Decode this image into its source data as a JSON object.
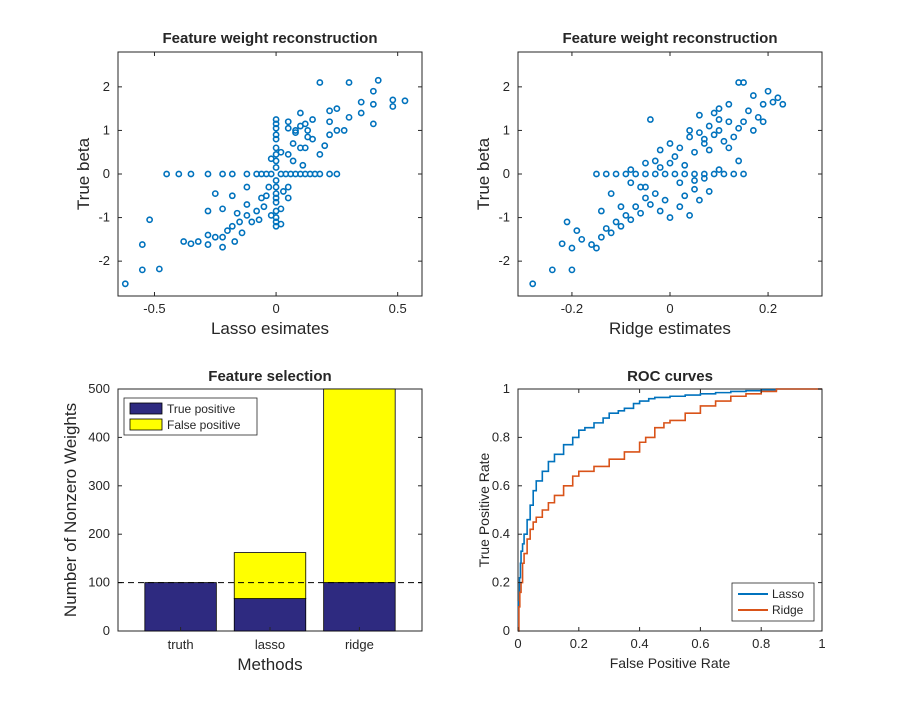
{
  "colors": {
    "scatter": "#0072BD",
    "true_positive": "#2E2A80",
    "false_positive": "#FFFF00",
    "lasso_line": "#0072BD",
    "ridge_line": "#D95319",
    "axis": "#262626"
  },
  "chart_data": [
    {
      "type": "scatter",
      "title": "Feature weight reconstruction",
      "xlabel": "Lasso esimates",
      "ylabel": "True beta",
      "xlim": [
        -0.65,
        0.6
      ],
      "ylim": [
        -2.8,
        2.8
      ],
      "xticks": [
        -0.5,
        0,
        0.5
      ],
      "xtick_labels": [
        "-0.5",
        "0",
        "0.5"
      ],
      "yticks": [
        -2,
        -1,
        0,
        1,
        2
      ],
      "ytick_labels": [
        "-2",
        "-1",
        "0",
        "1",
        "2"
      ],
      "marker": "circle-open",
      "points": [
        [
          -0.62,
          -2.52
        ],
        [
          -0.55,
          -2.2
        ],
        [
          -0.48,
          -2.18
        ],
        [
          -0.55,
          -1.62
        ],
        [
          -0.52,
          -1.05
        ],
        [
          -0.38,
          -1.55
        ],
        [
          -0.35,
          -1.6
        ],
        [
          -0.32,
          -1.55
        ],
        [
          -0.28,
          -1.62
        ],
        [
          -0.28,
          -1.4
        ],
        [
          -0.25,
          -1.45
        ],
        [
          -0.22,
          -1.68
        ],
        [
          -0.22,
          -1.45
        ],
        [
          -0.2,
          -1.3
        ],
        [
          -0.17,
          -1.55
        ],
        [
          -0.18,
          -1.2
        ],
        [
          -0.15,
          -1.1
        ],
        [
          -0.14,
          -1.35
        ],
        [
          -0.12,
          -0.95
        ],
        [
          -0.1,
          -1.1
        ],
        [
          -0.12,
          -0.7
        ],
        [
          -0.08,
          -0.85
        ],
        [
          -0.07,
          -1.05
        ],
        [
          -0.06,
          -0.55
        ],
        [
          -0.05,
          -0.75
        ],
        [
          -0.04,
          -0.5
        ],
        [
          -0.28,
          -0.85
        ],
        [
          -0.25,
          -0.45
        ],
        [
          -0.22,
          -0.8
        ],
        [
          -0.18,
          -0.5
        ],
        [
          -0.16,
          -0.9
        ],
        [
          -0.12,
          -0.3
        ],
        [
          -0.03,
          -0.3
        ],
        [
          -0.02,
          -0.95
        ],
        [
          0.0,
          -1.2
        ],
        [
          0.0,
          -1.1
        ],
        [
          0.02,
          -1.15
        ],
        [
          0.0,
          -0.65
        ],
        [
          0.02,
          -0.8
        ],
        [
          0.0,
          -0.55
        ],
        [
          0.03,
          -0.4
        ],
        [
          0.05,
          -0.55
        ],
        [
          0.05,
          -0.3
        ],
        [
          -0.02,
          0.35
        ],
        [
          0.0,
          0.6
        ],
        [
          0.0,
          0.8
        ],
        [
          0.02,
          0.5
        ],
        [
          0.05,
          0.45
        ],
        [
          0.07,
          0.3
        ],
        [
          0.07,
          0.7
        ],
        [
          0.08,
          0.95
        ],
        [
          0.1,
          0.6
        ],
        [
          0.12,
          0.6
        ],
        [
          0.13,
          0.85
        ],
        [
          0.0,
          1.15
        ],
        [
          0.0,
          1.25
        ],
        [
          0.05,
          1.05
        ],
        [
          0.05,
          1.2
        ],
        [
          0.08,
          1.0
        ],
        [
          0.1,
          1.1
        ],
        [
          0.13,
          1.0
        ],
        [
          0.15,
          0.8
        ],
        [
          0.18,
          0.45
        ],
        [
          0.2,
          0.65
        ],
        [
          0.22,
          0.9
        ],
        [
          0.22,
          1.2
        ],
        [
          0.1,
          1.4
        ],
        [
          0.11,
          0.2
        ],
        [
          0.12,
          1.15
        ],
        [
          0.22,
          1.45
        ],
        [
          0.25,
          1.5
        ],
        [
          0.25,
          1.0
        ],
        [
          0.28,
          1.0
        ],
        [
          0.3,
          1.3
        ],
        [
          0.35,
          1.4
        ],
        [
          0.35,
          1.65
        ],
        [
          0.4,
          1.6
        ],
        [
          0.4,
          1.9
        ],
        [
          0.42,
          2.15
        ],
        [
          0.4,
          1.15
        ],
        [
          0.48,
          1.55
        ],
        [
          0.48,
          1.7
        ],
        [
          0.53,
          1.68
        ],
        [
          0.3,
          2.1
        ],
        [
          0.18,
          2.1
        ],
        [
          0.15,
          1.25
        ],
        [
          0.18,
          0.0
        ],
        [
          0.22,
          0.0
        ],
        [
          0.25,
          0.0
        ],
        [
          -0.18,
          0.0
        ],
        [
          -0.22,
          0.0
        ],
        [
          -0.28,
          0.0
        ],
        [
          -0.35,
          0.0
        ],
        [
          -0.4,
          0.0
        ],
        [
          -0.45,
          0.0
        ],
        [
          -0.12,
          0.0
        ],
        [
          -0.08,
          0.0
        ],
        [
          -0.06,
          0.0
        ],
        [
          -0.04,
          0.0
        ],
        [
          -0.02,
          0.0
        ],
        [
          0.02,
          0.0
        ],
        [
          0.04,
          0.0
        ],
        [
          0.06,
          0.0
        ],
        [
          0.08,
          0.0
        ],
        [
          0.1,
          0.0
        ],
        [
          0.12,
          0.0
        ],
        [
          0.14,
          0.0
        ],
        [
          0.16,
          0.0
        ],
        [
          0.0,
          0.3
        ],
        [
          0.0,
          0.15
        ],
        [
          0.0,
          -0.15
        ],
        [
          0.0,
          -0.3
        ],
        [
          0.0,
          -0.45
        ],
        [
          0.0,
          0.45
        ],
        [
          0.0,
          -0.85
        ],
        [
          0.0,
          -1.0
        ],
        [
          0.0,
          0.9
        ],
        [
          0.0,
          1.05
        ]
      ]
    },
    {
      "type": "scatter",
      "title": "Feature weight reconstruction",
      "xlabel": "Ridge estimates",
      "ylabel": "True beta",
      "xlim": [
        -0.31,
        0.31
      ],
      "ylim": [
        -2.8,
        2.8
      ],
      "xticks": [
        -0.2,
        0,
        0.2
      ],
      "xtick_labels": [
        "-0.2",
        "0",
        "0.2"
      ],
      "yticks": [
        -2,
        -1,
        0,
        1,
        2
      ],
      "ytick_labels": [
        "-2",
        "-1",
        "0",
        "1",
        "2"
      ],
      "marker": "circle-open",
      "points": [
        [
          -0.28,
          -2.52
        ],
        [
          -0.24,
          -2.2
        ],
        [
          -0.2,
          -2.2
        ],
        [
          -0.22,
          -1.6
        ],
        [
          -0.21,
          -1.1
        ],
        [
          -0.19,
          -1.3
        ],
        [
          -0.2,
          -1.7
        ],
        [
          -0.18,
          -1.5
        ],
        [
          -0.16,
          -1.62
        ],
        [
          -0.15,
          -1.7
        ],
        [
          -0.14,
          -1.45
        ],
        [
          -0.13,
          -1.25
        ],
        [
          -0.12,
          -1.35
        ],
        [
          -0.11,
          -1.1
        ],
        [
          -0.1,
          -1.2
        ],
        [
          -0.09,
          -0.95
        ],
        [
          -0.08,
          -1.05
        ],
        [
          -0.07,
          -0.75
        ],
        [
          -0.06,
          -0.9
        ],
        [
          -0.05,
          -0.55
        ],
        [
          -0.04,
          -0.7
        ],
        [
          -0.03,
          -0.45
        ],
        [
          -0.14,
          -0.85
        ],
        [
          -0.12,
          -0.45
        ],
        [
          -0.08,
          -0.2
        ],
        [
          -0.06,
          -0.3
        ],
        [
          -0.02,
          -0.85
        ],
        [
          0.0,
          -1.0
        ],
        [
          0.02,
          -0.75
        ],
        [
          0.03,
          -0.5
        ],
        [
          0.04,
          -0.95
        ],
        [
          0.05,
          -0.35
        ],
        [
          0.06,
          -0.6
        ],
        [
          0.08,
          -0.4
        ],
        [
          -0.01,
          -0.6
        ],
        [
          -0.1,
          -0.75
        ],
        [
          -0.05,
          -0.3
        ],
        [
          -0.03,
          0.3
        ],
        [
          -0.02,
          0.55
        ],
        [
          0.0,
          0.7
        ],
        [
          0.01,
          0.4
        ],
        [
          0.02,
          0.6
        ],
        [
          0.03,
          0.2
        ],
        [
          0.04,
          0.85
        ],
        [
          0.05,
          0.5
        ],
        [
          0.06,
          0.95
        ],
        [
          0.07,
          0.7
        ],
        [
          0.08,
          0.55
        ],
        [
          0.09,
          0.9
        ],
        [
          0.1,
          1.0
        ],
        [
          0.11,
          0.75
        ],
        [
          0.12,
          0.6
        ],
        [
          0.13,
          0.85
        ],
        [
          0.14,
          1.05
        ],
        [
          0.14,
          0.3
        ],
        [
          0.15,
          1.2
        ],
        [
          0.12,
          1.2
        ],
        [
          0.1,
          1.25
        ],
        [
          0.08,
          1.1
        ],
        [
          0.06,
          1.35
        ],
        [
          0.04,
          1.0
        ],
        [
          -0.04,
          1.25
        ],
        [
          0.1,
          1.5
        ],
        [
          0.16,
          1.45
        ],
        [
          0.17,
          1.0
        ],
        [
          0.18,
          1.3
        ],
        [
          0.19,
          1.6
        ],
        [
          0.2,
          1.9
        ],
        [
          0.21,
          1.65
        ],
        [
          0.22,
          1.75
        ],
        [
          0.23,
          1.6
        ],
        [
          0.14,
          2.1
        ],
        [
          0.15,
          2.1
        ],
        [
          0.12,
          1.6
        ],
        [
          0.17,
          1.8
        ],
        [
          0.19,
          1.2
        ],
        [
          0.09,
          1.4
        ],
        [
          0.07,
          0.8
        ],
        [
          -0.15,
          0.0
        ],
        [
          -0.13,
          0.0
        ],
        [
          -0.11,
          0.0
        ],
        [
          -0.09,
          0.0
        ],
        [
          -0.07,
          0.0
        ],
        [
          -0.05,
          0.0
        ],
        [
          -0.03,
          0.0
        ],
        [
          -0.01,
          0.0
        ],
        [
          0.01,
          0.0
        ],
        [
          0.03,
          0.0
        ],
        [
          0.05,
          0.0
        ],
        [
          0.07,
          0.0
        ],
        [
          0.09,
          0.0
        ],
        [
          0.11,
          0.0
        ],
        [
          0.13,
          0.0
        ],
        [
          0.15,
          0.0
        ],
        [
          0.0,
          0.25
        ],
        [
          -0.02,
          0.15
        ],
        [
          -0.05,
          0.25
        ],
        [
          0.02,
          -0.2
        ],
        [
          0.05,
          -0.15
        ],
        [
          -0.08,
          0.1
        ],
        [
          0.07,
          -0.1
        ],
        [
          0.1,
          0.1
        ]
      ]
    },
    {
      "type": "bar",
      "stacked": true,
      "title": "Feature selection",
      "xlabel": "Methods",
      "ylabel": "Number of Nonzero Weights",
      "categories": [
        "truth",
        "lasso",
        "ridge"
      ],
      "ylim": [
        0,
        500
      ],
      "yticks": [
        0,
        100,
        200,
        300,
        400,
        500
      ],
      "ytick_labels": [
        "0",
        "100",
        "200",
        "300",
        "400",
        "500"
      ],
      "series": [
        {
          "name": "True positive",
          "values": [
            100,
            67,
            100
          ]
        },
        {
          "name": "False positive",
          "values": [
            0,
            95,
            400
          ]
        }
      ],
      "reference_line": {
        "y": 100,
        "style": "dashed"
      },
      "legend": "top-left"
    },
    {
      "type": "line",
      "title": "ROC curves",
      "xlabel": "False Positive Rate",
      "ylabel": "True Positive Rate",
      "xlim": [
        0,
        1
      ],
      "ylim": [
        0,
        1
      ],
      "xticks": [
        0,
        0.2,
        0.4,
        0.6,
        0.8,
        1
      ],
      "xtick_labels": [
        "0",
        "0.2",
        "0.4",
        "0.6",
        "0.8",
        "1"
      ],
      "yticks": [
        0,
        0.2,
        0.4,
        0.6,
        0.8,
        1
      ],
      "ytick_labels": [
        "0",
        "0.2",
        "0.4",
        "0.6",
        "0.8",
        "1"
      ],
      "legend": "bottom-right",
      "series": [
        {
          "name": "Lasso",
          "x": [
            0,
            0.002,
            0.005,
            0.008,
            0.01,
            0.015,
            0.02,
            0.03,
            0.04,
            0.05,
            0.06,
            0.08,
            0.1,
            0.12,
            0.15,
            0.18,
            0.2,
            0.22,
            0.25,
            0.28,
            0.3,
            0.33,
            0.35,
            0.38,
            0.4,
            0.43,
            0.45,
            0.5,
            0.55,
            0.6,
            0.65,
            0.7,
            0.75,
            0.8,
            0.85,
            0.9,
            1.0
          ],
          "y": [
            0,
            0.12,
            0.22,
            0.28,
            0.33,
            0.36,
            0.4,
            0.46,
            0.52,
            0.58,
            0.62,
            0.66,
            0.7,
            0.73,
            0.77,
            0.8,
            0.83,
            0.84,
            0.86,
            0.88,
            0.9,
            0.91,
            0.92,
            0.94,
            0.95,
            0.96,
            0.965,
            0.97,
            0.975,
            0.98,
            0.985,
            0.99,
            0.993,
            0.996,
            1.0,
            1.0,
            1.0
          ]
        },
        {
          "name": "Ridge",
          "x": [
            0,
            0.003,
            0.006,
            0.01,
            0.015,
            0.02,
            0.03,
            0.04,
            0.05,
            0.06,
            0.08,
            0.1,
            0.12,
            0.15,
            0.18,
            0.2,
            0.25,
            0.3,
            0.35,
            0.4,
            0.42,
            0.45,
            0.48,
            0.5,
            0.55,
            0.6,
            0.65,
            0.7,
            0.75,
            0.8,
            0.85,
            0.9,
            1.0
          ],
          "y": [
            0,
            0.1,
            0.16,
            0.2,
            0.28,
            0.32,
            0.38,
            0.42,
            0.45,
            0.47,
            0.5,
            0.53,
            0.56,
            0.6,
            0.64,
            0.66,
            0.68,
            0.71,
            0.74,
            0.78,
            0.8,
            0.84,
            0.86,
            0.87,
            0.9,
            0.93,
            0.95,
            0.97,
            0.98,
            0.99,
            1.0,
            1.0,
            1.0
          ]
        }
      ]
    }
  ]
}
